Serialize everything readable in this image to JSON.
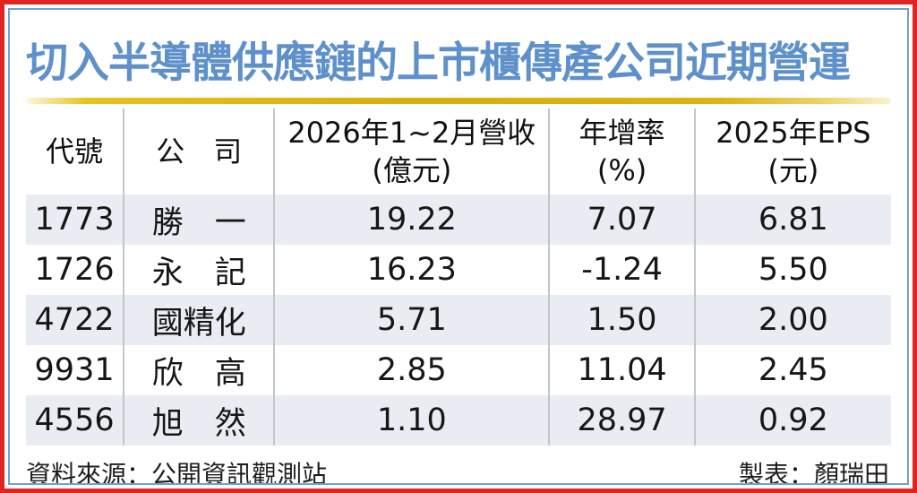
{
  "title": "切入半導體供應鏈的上市櫃傳產公司近期營運",
  "colors": {
    "frame_red": "#e02420",
    "frame_blue": "#73a0cd",
    "title_blue": "#5e90ca",
    "gold_rule": "#d9ad0d",
    "row_alt_bg": "#e9edf3",
    "divider_gray": "#c3c6c9",
    "text": "#161616"
  },
  "table": {
    "columns": [
      {
        "line1": "代號",
        "line2": ""
      },
      {
        "line1": "公　司",
        "line2": ""
      },
      {
        "line1": "2026年1~2月營收",
        "line2": "(億元)"
      },
      {
        "line1": "年增率",
        "line2": "(%)"
      },
      {
        "line1": "2025年EPS",
        "line2": "(元)"
      }
    ],
    "rows": [
      [
        "1773",
        "勝　一",
        "19.22",
        "7.07",
        "6.81"
      ],
      [
        "1726",
        "永　記",
        "16.23",
        "-1.24",
        "5.50"
      ],
      [
        "4722",
        "國精化",
        "5.71",
        "1.50",
        "2.00"
      ],
      [
        "9931",
        "欣　高",
        "2.85",
        "11.04",
        "2.45"
      ],
      [
        "4556",
        "旭　然",
        "1.10",
        "28.97",
        "0.92"
      ]
    ]
  },
  "footer": {
    "source": "資料來源：公開資訊觀測站",
    "credit": "製表：顏瑞田"
  },
  "chart_data": {
    "type": "table",
    "title": "切入半導體供應鏈的上市櫃傳產公司近期營運",
    "columns": [
      "代號",
      "公司",
      "2026年1~2月營收(億元)",
      "年增率(%)",
      "2025年EPS(元)"
    ],
    "rows": [
      [
        "1773",
        "勝一",
        19.22,
        7.07,
        6.81
      ],
      [
        "1726",
        "永記",
        16.23,
        -1.24,
        5.5
      ],
      [
        "4722",
        "國精化",
        5.71,
        1.5,
        2.0
      ],
      [
        "9931",
        "欣高",
        2.85,
        11.04,
        2.45
      ],
      [
        "4556",
        "旭然",
        1.1,
        28.97,
        0.92
      ]
    ],
    "source": "公開資訊觀測站",
    "credit": "顏瑞田"
  }
}
